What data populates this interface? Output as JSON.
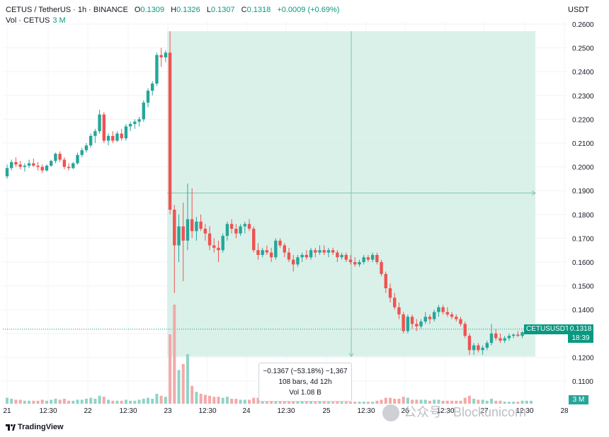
{
  "header": {
    "symbol": "CETUS / TetherUS · 1h · BINANCE",
    "o_label": "O",
    "o_value": "0.1309",
    "h_label": "H",
    "h_value": "0.1326",
    "l_label": "L",
    "l_value": "0.1307",
    "c_label": "C",
    "c_value": "0.1318",
    "change": "+0.0009 (+0.69%)",
    "vol_label": "Vol · CETUS",
    "vol_value": "3 M",
    "currency": "USDT"
  },
  "price_tag": {
    "symbol": "CETUSUSDT",
    "price": "0.1318",
    "countdown": "18:39"
  },
  "volume_tag": "3 M",
  "measure_box": {
    "line1": "−0.1367 (−53.18%) −1,367",
    "line2": "108 bars, 4d 12h",
    "line3": "Vol 1.08 B"
  },
  "branding": "TradingView",
  "watermark": "公众号 · Blockunicorn",
  "colors": {
    "up": "#26a69a",
    "down": "#ef5350",
    "range": "#d3efe6"
  },
  "chart_data": {
    "type": "candlestick",
    "y_ticks": [
      "0.2600",
      "0.2500",
      "0.2400",
      "0.2300",
      "0.2200",
      "0.2100",
      "0.2000",
      "0.1900",
      "0.1800",
      "0.1700",
      "0.1600",
      "0.1500",
      "0.1400",
      "0.1300",
      "0.1200",
      "0.1100"
    ],
    "ylim": [
      0.1,
      0.263
    ],
    "x_ticks": [
      "21",
      "12:30",
      "22",
      "12:30",
      "23",
      "12:30",
      "24",
      "12:30",
      "25",
      "12:30",
      "26",
      "12:30",
      "27",
      "12:30",
      "28"
    ],
    "series": [
      {
        "o": 0.196,
        "h": 0.201,
        "l": 0.195,
        "c": 0.1995,
        "v": 6
      },
      {
        "o": 0.1995,
        "h": 0.203,
        "l": 0.1985,
        "c": 0.202,
        "v": 5
      },
      {
        "o": 0.202,
        "h": 0.204,
        "l": 0.2,
        "c": 0.201,
        "v": 4
      },
      {
        "o": 0.201,
        "h": 0.2025,
        "l": 0.199,
        "c": 0.2,
        "v": 4
      },
      {
        "o": 0.2,
        "h": 0.2015,
        "l": 0.198,
        "c": 0.2005,
        "v": 3
      },
      {
        "o": 0.2005,
        "h": 0.203,
        "l": 0.1995,
        "c": 0.2015,
        "v": 3
      },
      {
        "o": 0.2015,
        "h": 0.2035,
        "l": 0.2,
        "c": 0.2005,
        "v": 3
      },
      {
        "o": 0.2005,
        "h": 0.202,
        "l": 0.1985,
        "c": 0.2,
        "v": 3
      },
      {
        "o": 0.2,
        "h": 0.201,
        "l": 0.1975,
        "c": 0.1985,
        "v": 4
      },
      {
        "o": 0.1985,
        "h": 0.201,
        "l": 0.198,
        "c": 0.2005,
        "v": 3
      },
      {
        "o": 0.2005,
        "h": 0.203,
        "l": 0.2,
        "c": 0.2025,
        "v": 4
      },
      {
        "o": 0.2025,
        "h": 0.206,
        "l": 0.2015,
        "c": 0.2055,
        "v": 5
      },
      {
        "o": 0.2055,
        "h": 0.2065,
        "l": 0.202,
        "c": 0.203,
        "v": 4
      },
      {
        "o": 0.203,
        "h": 0.204,
        "l": 0.199,
        "c": 0.2,
        "v": 5
      },
      {
        "o": 0.2,
        "h": 0.2015,
        "l": 0.1985,
        "c": 0.1995,
        "v": 3
      },
      {
        "o": 0.1995,
        "h": 0.202,
        "l": 0.199,
        "c": 0.2015,
        "v": 3
      },
      {
        "o": 0.2015,
        "h": 0.206,
        "l": 0.201,
        "c": 0.205,
        "v": 4
      },
      {
        "o": 0.205,
        "h": 0.208,
        "l": 0.204,
        "c": 0.207,
        "v": 4
      },
      {
        "o": 0.207,
        "h": 0.21,
        "l": 0.206,
        "c": 0.209,
        "v": 5
      },
      {
        "o": 0.209,
        "h": 0.214,
        "l": 0.208,
        "c": 0.213,
        "v": 6
      },
      {
        "o": 0.213,
        "h": 0.216,
        "l": 0.21,
        "c": 0.215,
        "v": 5
      },
      {
        "o": 0.215,
        "h": 0.224,
        "l": 0.214,
        "c": 0.222,
        "v": 8
      },
      {
        "o": 0.222,
        "h": 0.223,
        "l": 0.21,
        "c": 0.211,
        "v": 7
      },
      {
        "o": 0.211,
        "h": 0.214,
        "l": 0.209,
        "c": 0.213,
        "v": 4
      },
      {
        "o": 0.213,
        "h": 0.215,
        "l": 0.21,
        "c": 0.211,
        "v": 3
      },
      {
        "o": 0.211,
        "h": 0.215,
        "l": 0.2105,
        "c": 0.214,
        "v": 3
      },
      {
        "o": 0.214,
        "h": 0.216,
        "l": 0.211,
        "c": 0.212,
        "v": 3
      },
      {
        "o": 0.212,
        "h": 0.218,
        "l": 0.211,
        "c": 0.217,
        "v": 4
      },
      {
        "o": 0.217,
        "h": 0.219,
        "l": 0.215,
        "c": 0.218,
        "v": 3
      },
      {
        "o": 0.218,
        "h": 0.22,
        "l": 0.216,
        "c": 0.219,
        "v": 3
      },
      {
        "o": 0.219,
        "h": 0.221,
        "l": 0.217,
        "c": 0.22,
        "v": 4
      },
      {
        "o": 0.22,
        "h": 0.228,
        "l": 0.219,
        "c": 0.227,
        "v": 5
      },
      {
        "o": 0.227,
        "h": 0.233,
        "l": 0.225,
        "c": 0.232,
        "v": 6
      },
      {
        "o": 0.232,
        "h": 0.236,
        "l": 0.23,
        "c": 0.235,
        "v": 5
      },
      {
        "o": 0.235,
        "h": 0.248,
        "l": 0.234,
        "c": 0.247,
        "v": 10
      },
      {
        "o": 0.247,
        "h": 0.25,
        "l": 0.242,
        "c": 0.246,
        "v": 8
      },
      {
        "o": 0.246,
        "h": 0.249,
        "l": 0.244,
        "c": 0.248,
        "v": 7
      },
      {
        "o": 0.248,
        "h": 0.257,
        "l": 0.18,
        "c": 0.182,
        "v": 70
      },
      {
        "o": 0.182,
        "h": 0.184,
        "l": 0.147,
        "c": 0.167,
        "v": 100
      },
      {
        "o": 0.167,
        "h": 0.18,
        "l": 0.16,
        "c": 0.175,
        "v": 34
      },
      {
        "o": 0.175,
        "h": 0.185,
        "l": 0.152,
        "c": 0.169,
        "v": 40
      },
      {
        "o": 0.169,
        "h": 0.193,
        "l": 0.165,
        "c": 0.178,
        "v": 50
      },
      {
        "o": 0.178,
        "h": 0.191,
        "l": 0.17,
        "c": 0.173,
        "v": 18
      },
      {
        "o": 0.173,
        "h": 0.179,
        "l": 0.169,
        "c": 0.177,
        "v": 12
      },
      {
        "o": 0.177,
        "h": 0.18,
        "l": 0.173,
        "c": 0.174,
        "v": 10
      },
      {
        "o": 0.174,
        "h": 0.176,
        "l": 0.169,
        "c": 0.172,
        "v": 9
      },
      {
        "o": 0.172,
        "h": 0.175,
        "l": 0.165,
        "c": 0.167,
        "v": 8
      },
      {
        "o": 0.167,
        "h": 0.17,
        "l": 0.164,
        "c": 0.166,
        "v": 7
      },
      {
        "o": 0.166,
        "h": 0.169,
        "l": 0.16,
        "c": 0.165,
        "v": 7
      },
      {
        "o": 0.165,
        "h": 0.172,
        "l": 0.164,
        "c": 0.171,
        "v": 6
      },
      {
        "o": 0.171,
        "h": 0.177,
        "l": 0.169,
        "c": 0.176,
        "v": 7
      },
      {
        "o": 0.176,
        "h": 0.178,
        "l": 0.172,
        "c": 0.174,
        "v": 5
      },
      {
        "o": 0.174,
        "h": 0.176,
        "l": 0.17,
        "c": 0.172,
        "v": 5
      },
      {
        "o": 0.172,
        "h": 0.176,
        "l": 0.171,
        "c": 0.175,
        "v": 4
      },
      {
        "o": 0.175,
        "h": 0.177,
        "l": 0.172,
        "c": 0.176,
        "v": 4
      },
      {
        "o": 0.176,
        "h": 0.178,
        "l": 0.173,
        "c": 0.174,
        "v": 4
      },
      {
        "o": 0.174,
        "h": 0.175,
        "l": 0.164,
        "c": 0.165,
        "v": 6
      },
      {
        "o": 0.165,
        "h": 0.168,
        "l": 0.161,
        "c": 0.163,
        "v": 6
      },
      {
        "o": 0.163,
        "h": 0.166,
        "l": 0.162,
        "c": 0.165,
        "v": 4
      },
      {
        "o": 0.165,
        "h": 0.167,
        "l": 0.163,
        "c": 0.164,
        "v": 3
      },
      {
        "o": 0.164,
        "h": 0.166,
        "l": 0.16,
        "c": 0.162,
        "v": 3
      },
      {
        "o": 0.162,
        "h": 0.17,
        "l": 0.161,
        "c": 0.169,
        "v": 5
      },
      {
        "o": 0.169,
        "h": 0.17,
        "l": 0.166,
        "c": 0.167,
        "v": 4
      },
      {
        "o": 0.167,
        "h": 0.168,
        "l": 0.162,
        "c": 0.164,
        "v": 3
      },
      {
        "o": 0.164,
        "h": 0.166,
        "l": 0.16,
        "c": 0.161,
        "v": 4
      },
      {
        "o": 0.161,
        "h": 0.163,
        "l": 0.156,
        "c": 0.159,
        "v": 5
      },
      {
        "o": 0.159,
        "h": 0.163,
        "l": 0.158,
        "c": 0.162,
        "v": 4
      },
      {
        "o": 0.162,
        "h": 0.164,
        "l": 0.16,
        "c": 0.163,
        "v": 3
      },
      {
        "o": 0.163,
        "h": 0.165,
        "l": 0.161,
        "c": 0.162,
        "v": 3
      },
      {
        "o": 0.162,
        "h": 0.166,
        "l": 0.161,
        "c": 0.165,
        "v": 3
      },
      {
        "o": 0.165,
        "h": 0.166,
        "l": 0.162,
        "c": 0.164,
        "v": 3
      },
      {
        "o": 0.164,
        "h": 0.167,
        "l": 0.163,
        "c": 0.165,
        "v": 3
      },
      {
        "o": 0.165,
        "h": 0.167,
        "l": 0.163,
        "c": 0.164,
        "v": 3
      },
      {
        "o": 0.164,
        "h": 0.166,
        "l": 0.162,
        "c": 0.165,
        "v": 2
      },
      {
        "o": 0.165,
        "h": 0.166,
        "l": 0.163,
        "c": 0.164,
        "v": 2
      },
      {
        "o": 0.164,
        "h": 0.165,
        "l": 0.16,
        "c": 0.162,
        "v": 3
      },
      {
        "o": 0.162,
        "h": 0.164,
        "l": 0.161,
        "c": 0.163,
        "v": 2
      },
      {
        "o": 0.163,
        "h": 0.164,
        "l": 0.16,
        "c": 0.161,
        "v": 2
      },
      {
        "o": 0.161,
        "h": 0.163,
        "l": 0.159,
        "c": 0.16,
        "v": 2
      },
      {
        "o": 0.16,
        "h": 0.162,
        "l": 0.158,
        "c": 0.159,
        "v": 2
      },
      {
        "o": 0.159,
        "h": 0.161,
        "l": 0.158,
        "c": 0.16,
        "v": 2
      },
      {
        "o": 0.16,
        "h": 0.163,
        "l": 0.159,
        "c": 0.162,
        "v": 2
      },
      {
        "o": 0.162,
        "h": 0.163,
        "l": 0.16,
        "c": 0.161,
        "v": 2
      },
      {
        "o": 0.161,
        "h": 0.164,
        "l": 0.16,
        "c": 0.163,
        "v": 2
      },
      {
        "o": 0.163,
        "h": 0.164,
        "l": 0.159,
        "c": 0.16,
        "v": 3
      },
      {
        "o": 0.16,
        "h": 0.161,
        "l": 0.154,
        "c": 0.155,
        "v": 4
      },
      {
        "o": 0.155,
        "h": 0.156,
        "l": 0.147,
        "c": 0.149,
        "v": 6
      },
      {
        "o": 0.149,
        "h": 0.151,
        "l": 0.143,
        "c": 0.145,
        "v": 6
      },
      {
        "o": 0.145,
        "h": 0.147,
        "l": 0.14,
        "c": 0.141,
        "v": 5
      },
      {
        "o": 0.141,
        "h": 0.143,
        "l": 0.136,
        "c": 0.138,
        "v": 5
      },
      {
        "o": 0.138,
        "h": 0.139,
        "l": 0.13,
        "c": 0.131,
        "v": 7
      },
      {
        "o": 0.131,
        "h": 0.138,
        "l": 0.13,
        "c": 0.137,
        "v": 6
      },
      {
        "o": 0.137,
        "h": 0.138,
        "l": 0.132,
        "c": 0.134,
        "v": 4
      },
      {
        "o": 0.134,
        "h": 0.136,
        "l": 0.131,
        "c": 0.133,
        "v": 4
      },
      {
        "o": 0.133,
        "h": 0.136,
        "l": 0.132,
        "c": 0.135,
        "v": 4
      },
      {
        "o": 0.135,
        "h": 0.139,
        "l": 0.134,
        "c": 0.137,
        "v": 4
      },
      {
        "o": 0.137,
        "h": 0.138,
        "l": 0.134,
        "c": 0.136,
        "v": 3
      },
      {
        "o": 0.136,
        "h": 0.14,
        "l": 0.135,
        "c": 0.139,
        "v": 4
      },
      {
        "o": 0.139,
        "h": 0.142,
        "l": 0.137,
        "c": 0.141,
        "v": 4
      },
      {
        "o": 0.141,
        "h": 0.142,
        "l": 0.138,
        "c": 0.139,
        "v": 3
      },
      {
        "o": 0.139,
        "h": 0.141,
        "l": 0.137,
        "c": 0.138,
        "v": 3
      },
      {
        "o": 0.138,
        "h": 0.139,
        "l": 0.136,
        "c": 0.137,
        "v": 3
      },
      {
        "o": 0.137,
        "h": 0.138,
        "l": 0.135,
        "c": 0.136,
        "v": 3
      },
      {
        "o": 0.136,
        "h": 0.137,
        "l": 0.133,
        "c": 0.134,
        "v": 3
      },
      {
        "o": 0.134,
        "h": 0.135,
        "l": 0.128,
        "c": 0.129,
        "v": 6
      },
      {
        "o": 0.129,
        "h": 0.13,
        "l": 0.121,
        "c": 0.123,
        "v": 8
      },
      {
        "o": 0.123,
        "h": 0.126,
        "l": 0.121,
        "c": 0.125,
        "v": 5
      },
      {
        "o": 0.125,
        "h": 0.126,
        "l": 0.122,
        "c": 0.123,
        "v": 4
      },
      {
        "o": 0.123,
        "h": 0.125,
        "l": 0.121,
        "c": 0.124,
        "v": 4
      },
      {
        "o": 0.124,
        "h": 0.127,
        "l": 0.123,
        "c": 0.126,
        "v": 3
      },
      {
        "o": 0.126,
        "h": 0.134,
        "l": 0.125,
        "c": 0.13,
        "v": 5
      },
      {
        "o": 0.13,
        "h": 0.132,
        "l": 0.127,
        "c": 0.128,
        "v": 3
      },
      {
        "o": 0.128,
        "h": 0.13,
        "l": 0.126,
        "c": 0.127,
        "v": 3
      },
      {
        "o": 0.127,
        "h": 0.129,
        "l": 0.126,
        "c": 0.128,
        "v": 2
      },
      {
        "o": 0.128,
        "h": 0.13,
        "l": 0.127,
        "c": 0.129,
        "v": 2
      },
      {
        "o": 0.129,
        "h": 0.13,
        "l": 0.128,
        "c": 0.1295,
        "v": 2
      },
      {
        "o": 0.1295,
        "h": 0.131,
        "l": 0.1285,
        "c": 0.129,
        "v": 2
      },
      {
        "o": 0.129,
        "h": 0.131,
        "l": 0.128,
        "c": 0.1305,
        "v": 3
      },
      {
        "o": 0.1305,
        "h": 0.132,
        "l": 0.13,
        "c": 0.1309,
        "v": 3
      },
      {
        "o": 0.1309,
        "h": 0.1326,
        "l": 0.1307,
        "c": 0.1318,
        "v": 3
      }
    ],
    "measure_range": {
      "start_index": 37,
      "end_index": 145,
      "from_price": 0.257,
      "to_price": 0.1203
    }
  }
}
